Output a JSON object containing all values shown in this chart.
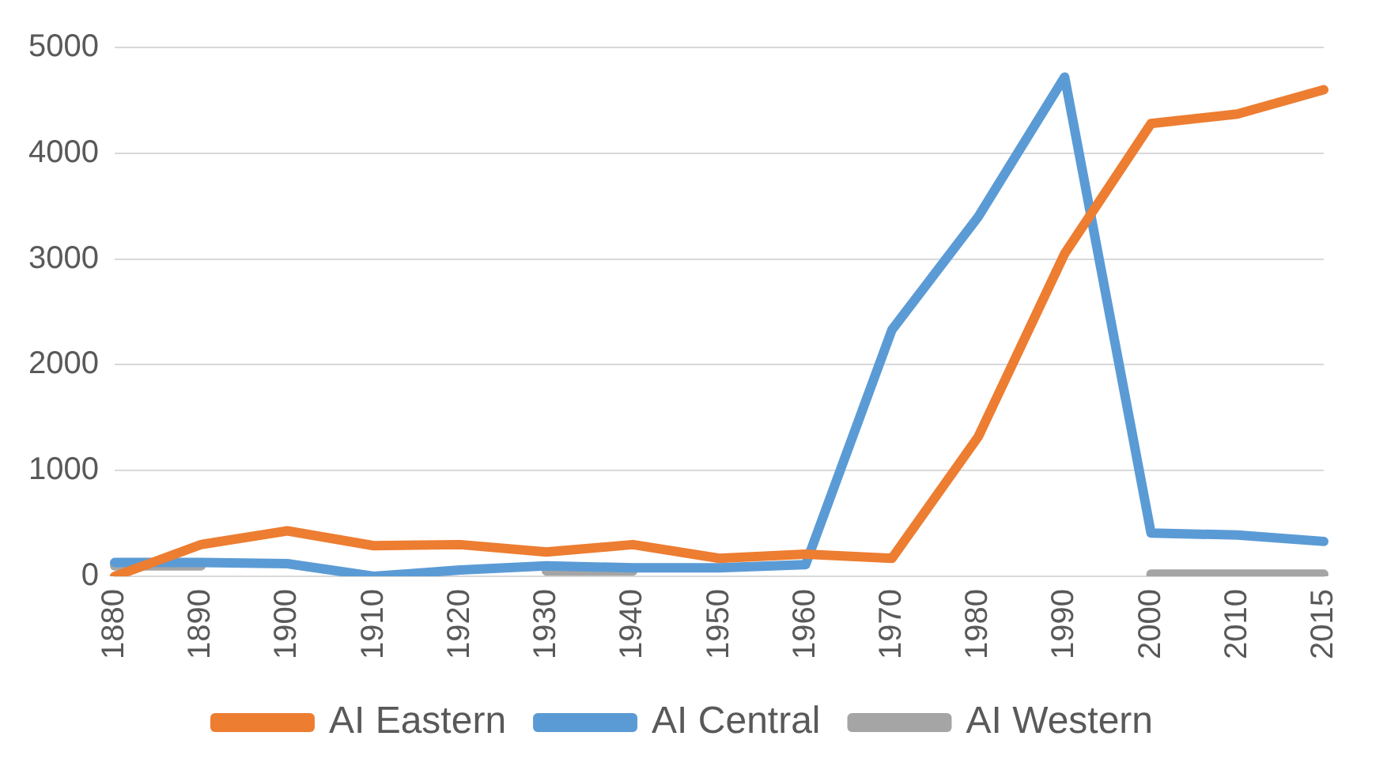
{
  "chart_data": {
    "type": "line",
    "categories": [
      "1880",
      "1890",
      "1900",
      "1910",
      "1920",
      "1930",
      "1940",
      "1950",
      "1960",
      "1970",
      "1980",
      "1990",
      "2000",
      "2010",
      "2015"
    ],
    "series": [
      {
        "name": "AI Eastern",
        "color": "#ed7d31",
        "values": [
          0,
          300,
          430,
          290,
          300,
          230,
          300,
          170,
          210,
          170,
          1320,
          3050,
          4280,
          4370,
          4600
        ]
      },
      {
        "name": "AI Central",
        "color": "#5b9bd5",
        "values": [
          130,
          130,
          120,
          0,
          60,
          100,
          80,
          80,
          110,
          2330,
          3400,
          4720,
          410,
          390,
          330
        ]
      },
      {
        "name": "AI Western",
        "color": "#a5a5a5",
        "values": [
          100,
          100,
          null,
          null,
          null,
          50,
          50,
          null,
          null,
          null,
          null,
          null,
          20,
          20,
          20
        ]
      }
    ],
    "ylim": [
      0,
      5000
    ],
    "yticks": [
      0,
      1000,
      2000,
      3000,
      4000,
      5000
    ],
    "grid": "y",
    "legend": "bottom",
    "marker": "none",
    "line_style": "solid"
  }
}
